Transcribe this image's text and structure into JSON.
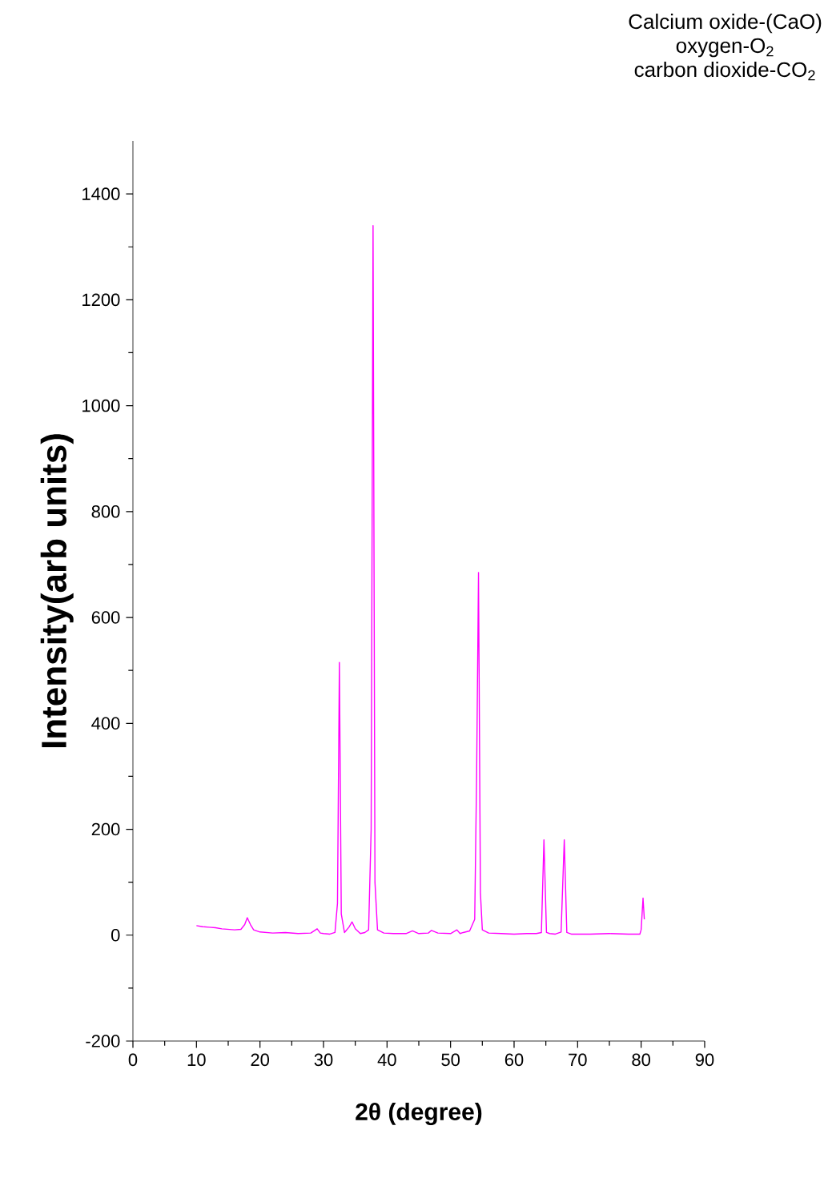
{
  "chart_data": {
    "type": "line",
    "xlabel": "2θ (degree)",
    "ylabel": "Intensity(arb units)",
    "annotations": [
      "Calcium oxide-(CaO)",
      "oxygen-O$_{2}$",
      "carbon dioxide-CO$_{2}$"
    ],
    "xlim": [
      0,
      90
    ],
    "xticks": [
      0,
      10,
      20,
      30,
      40,
      50,
      60,
      70,
      80,
      90
    ],
    "ylim": [
      -200,
      1500
    ],
    "yticks": [
      -200,
      0,
      200,
      400,
      600,
      800,
      1000,
      1200,
      1400
    ],
    "grid": false,
    "series": [
      {
        "color": "#ff00ff",
        "x": [
          10,
          11,
          12,
          13,
          14,
          15,
          16,
          17,
          17.6,
          18,
          18.5,
          19,
          20,
          22,
          24,
          26,
          28,
          29,
          29.5,
          30,
          31,
          31.8,
          32.2,
          32.5,
          32.8,
          33.3,
          34,
          34.5,
          35,
          35.8,
          36.5,
          37.1,
          37.5,
          37.8,
          38.1,
          38.5,
          39.5,
          41,
          43,
          44,
          45,
          46.5,
          47,
          48,
          50,
          51,
          51.5,
          52,
          53,
          53.8,
          54.1,
          54.4,
          54.7,
          55,
          56,
          58,
          60,
          62,
          63.5,
          64.3,
          64.7,
          65.1,
          65.6,
          66.5,
          67.4,
          67.9,
          68.3,
          69,
          72,
          75,
          78,
          79.8,
          80,
          80.3,
          80.5
        ],
        "values": [
          18,
          16,
          15,
          14,
          12,
          11,
          10,
          11,
          20,
          33,
          20,
          10,
          6,
          4,
          5,
          3,
          4,
          12,
          4,
          3,
          2,
          5,
          60,
          515,
          40,
          5,
          15,
          25,
          12,
          3,
          5,
          10,
          200,
          1340,
          100,
          10,
          4,
          3,
          3,
          8,
          3,
          4,
          9,
          4,
          3,
          10,
          3,
          5,
          8,
          30,
          300,
          685,
          80,
          10,
          4,
          3,
          2,
          3,
          3,
          5,
          180,
          5,
          3,
          2,
          6,
          180,
          5,
          2,
          2,
          3,
          2,
          2,
          10,
          70,
          30
        ]
      }
    ]
  }
}
